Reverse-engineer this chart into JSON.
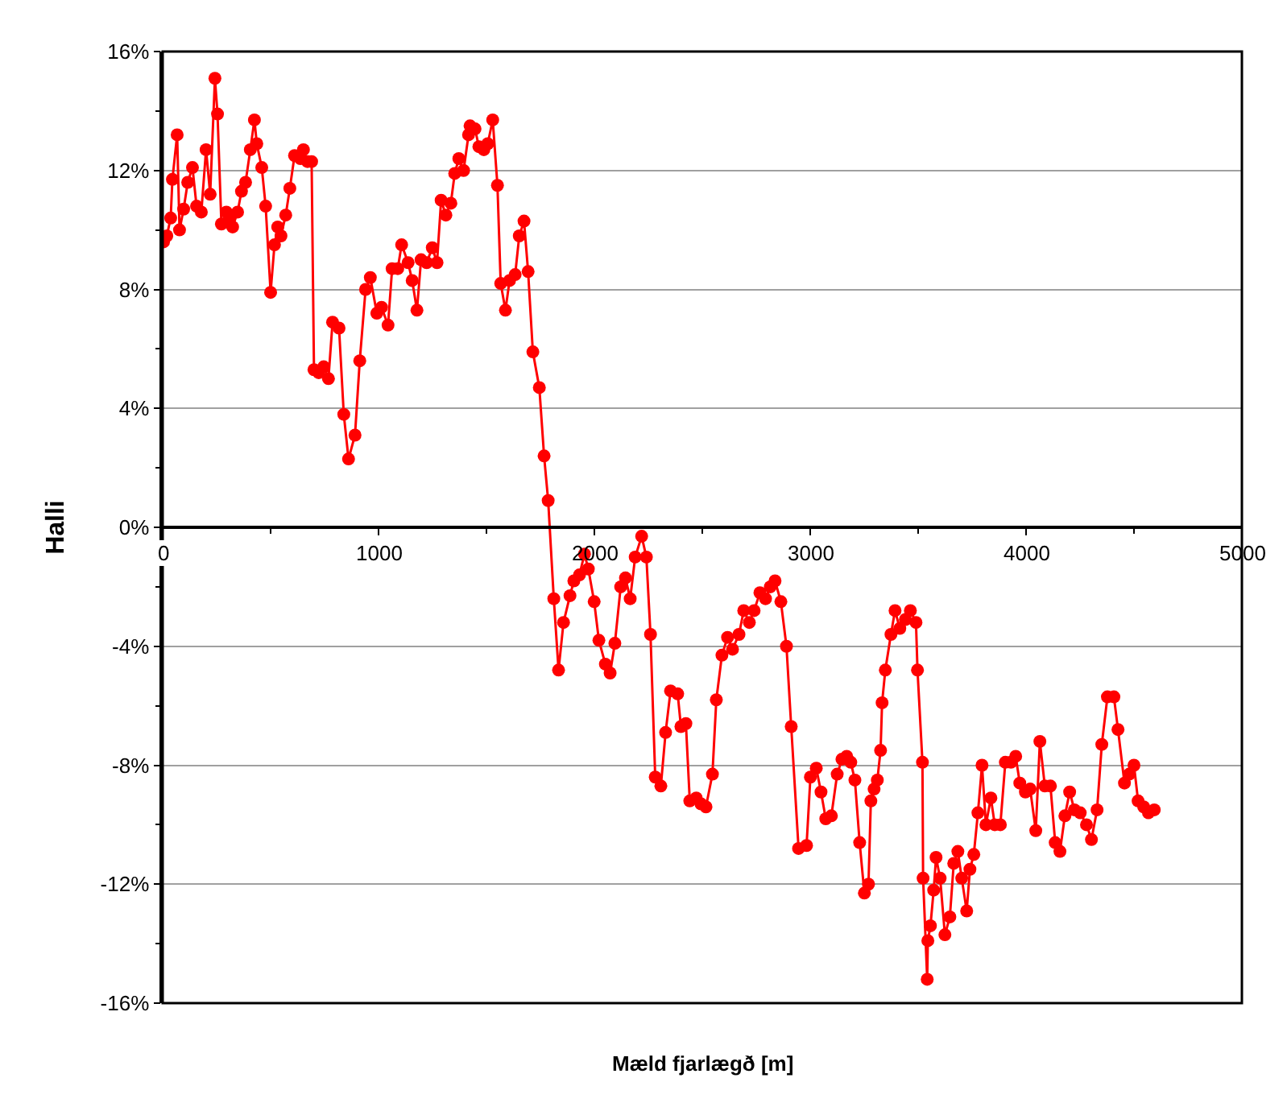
{
  "chart_data": {
    "type": "line",
    "xlabel": "Mæld fjarlægð [m]",
    "ylabel": "Halli",
    "xlim": [
      0,
      5000
    ],
    "xticks": [
      0,
      1000,
      2000,
      3000,
      4000,
      5000
    ],
    "ylim": [
      -16,
      16
    ],
    "yticks": [
      {
        "value": -16,
        "label": "-16%"
      },
      {
        "value": -12,
        "label": "-12%"
      },
      {
        "value": -8,
        "label": "-8%"
      },
      {
        "value": -4,
        "label": "-4%"
      },
      {
        "value": 0,
        "label": "0%"
      },
      {
        "value": 4,
        "label": "4%"
      },
      {
        "value": 8,
        "label": "8%"
      },
      {
        "value": 12,
        "label": "12%"
      },
      {
        "value": 16,
        "label": "16%"
      }
    ],
    "grid": "y",
    "marker": "circle",
    "line_style": "solid",
    "series": [
      {
        "color": "#ff0000",
        "x": [
          4,
          19,
          37,
          45,
          67,
          78,
          97,
          116,
          138,
          157,
          179,
          201,
          220,
          242,
          254,
          272,
          295,
          309,
          324,
          347,
          365,
          384,
          406,
          425,
          436,
          459,
          477,
          500,
          518,
          533,
          548,
          570,
          589,
          611,
          638,
          652,
          671,
          690,
          701,
          723,
          746,
          768,
          787,
          817,
          839,
          861,
          891,
          913,
          940,
          962,
          992,
          1014,
          1044,
          1063,
          1089,
          1107,
          1137,
          1156,
          1178,
          1197,
          1223,
          1249,
          1271,
          1290,
          1312,
          1335,
          1353,
          1372,
          1394,
          1417,
          1424,
          1447,
          1465,
          1488,
          1506,
          1529,
          1551,
          1566,
          1588,
          1607,
          1633,
          1652,
          1674,
          1693,
          1715,
          1745,
          1767,
          1786,
          1812,
          1834,
          1857,
          1887,
          1905,
          1931,
          1954,
          1972,
          1999,
          2021,
          2051,
          2073,
          2095,
          2122,
          2144,
          2166,
          2189,
          2219,
          2241,
          2260,
          2282,
          2308,
          2330,
          2353,
          2386,
          2401,
          2424,
          2442,
          2472,
          2494,
          2517,
          2547,
          2565,
          2591,
          2617,
          2640,
          2670,
          2692,
          2718,
          2740,
          2767,
          2793,
          2815,
          2837,
          2864,
          2890,
          2912,
          2946,
          2983,
          3001,
          3028,
          3050,
          3072,
          3098,
          3125,
          3147,
          3169,
          3188,
          3207,
          3229,
          3251,
          3270,
          3281,
          3296,
          3311,
          3326,
          3333,
          3348,
          3374,
          3393,
          3415,
          3441,
          3464,
          3490,
          3497,
          3520,
          3523,
          3542,
          3545,
          3557,
          3572,
          3583,
          3602,
          3624,
          3647,
          3665,
          3684,
          3702,
          3725,
          3740,
          3758,
          3777,
          3796,
          3814,
          3837,
          3855,
          3881,
          3904,
          3930,
          3952,
          3971,
          3997,
          4019,
          4045,
          4064,
          4087,
          4113,
          4135,
          4157,
          4180,
          4202,
          4224,
          4251,
          4280,
          4303,
          4329,
          4351,
          4377,
          4407,
          4426,
          4456,
          4478,
          4500,
          4519,
          4545,
          4567,
          4594
        ],
        "values": [
          9.6,
          9.8,
          10.4,
          11.7,
          13.2,
          10.0,
          10.7,
          11.6,
          12.1,
          10.8,
          10.6,
          12.7,
          11.2,
          15.1,
          13.9,
          10.2,
          10.6,
          10.4,
          10.1,
          10.6,
          11.3,
          11.6,
          12.7,
          13.7,
          12.9,
          12.1,
          10.8,
          7.9,
          9.5,
          10.1,
          9.8,
          10.5,
          11.4,
          12.5,
          12.4,
          12.7,
          12.3,
          12.3,
          5.3,
          5.2,
          5.4,
          5.0,
          6.9,
          6.7,
          3.8,
          2.3,
          3.1,
          5.6,
          8.0,
          8.4,
          7.2,
          7.4,
          6.8,
          8.7,
          8.7,
          9.5,
          8.9,
          8.3,
          7.3,
          9.0,
          8.9,
          9.4,
          8.9,
          11.0,
          10.5,
          10.9,
          11.9,
          12.4,
          12.0,
          13.2,
          13.5,
          13.4,
          12.8,
          12.7,
          12.9,
          13.7,
          11.5,
          8.2,
          7.3,
          8.3,
          8.5,
          9.8,
          10.3,
          8.6,
          5.9,
          4.7,
          2.4,
          0.9,
          -2.4,
          -4.8,
          -3.2,
          -2.3,
          -1.8,
          -1.6,
          -0.9,
          -1.4,
          -2.5,
          -3.8,
          -4.6,
          -4.9,
          -3.9,
          -2.0,
          -1.7,
          -2.4,
          -1.0,
          -0.3,
          -1.0,
          -3.6,
          -8.4,
          -8.7,
          -6.9,
          -5.5,
          -5.6,
          -6.7,
          -6.6,
          -9.2,
          -9.1,
          -9.3,
          -9.4,
          -8.3,
          -5.8,
          -4.3,
          -3.7,
          -4.1,
          -3.6,
          -2.8,
          -3.2,
          -2.8,
          -2.2,
          -2.4,
          -2.0,
          -1.8,
          -2.5,
          -4.0,
          -6.7,
          -10.8,
          -10.7,
          -8.4,
          -8.1,
          -8.9,
          -9.8,
          -9.7,
          -8.3,
          -7.8,
          -7.7,
          -7.9,
          -8.5,
          -10.6,
          -12.3,
          -12.0,
          -9.2,
          -8.8,
          -8.5,
          -7.5,
          -5.9,
          -4.8,
          -3.6,
          -2.8,
          -3.4,
          -3.1,
          -2.8,
          -3.2,
          -4.8,
          -7.9,
          -11.8,
          -15.2,
          -13.9,
          -13.4,
          -12.2,
          -11.1,
          -11.8,
          -13.7,
          -13.1,
          -11.3,
          -10.9,
          -11.8,
          -12.9,
          -11.5,
          -11.0,
          -9.6,
          -8.0,
          -10.0,
          -9.1,
          -10.0,
          -10.0,
          -7.9,
          -7.9,
          -7.7,
          -8.6,
          -8.9,
          -8.8,
          -10.2,
          -7.2,
          -8.7,
          -8.7,
          -10.6,
          -10.9,
          -9.7,
          -8.9,
          -9.5,
          -9.6,
          -10.0,
          -10.5,
          -9.5,
          -7.3,
          -5.7,
          -5.7,
          -6.8,
          -8.6,
          -8.3,
          -8.0,
          -9.2,
          -9.4,
          -9.6,
          -9.5
        ]
      }
    ]
  }
}
